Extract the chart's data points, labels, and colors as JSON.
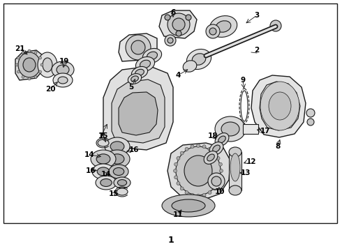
{
  "bg_color": "#ffffff",
  "border_color": "#000000",
  "text_color": "#000000",
  "fig_width": 4.9,
  "fig_height": 3.6,
  "dpi": 100,
  "footer_label": "1"
}
